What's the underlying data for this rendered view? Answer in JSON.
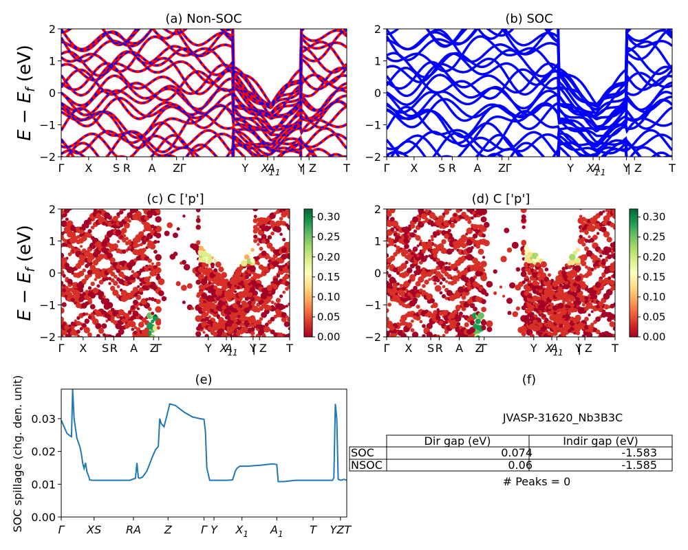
{
  "figure": {
    "id": "JVASP-31620_Nb3B3C"
  },
  "band_ylabel": "E − E",
  "band_ylabel_sub": "f",
  "band_ylabel_unit": " (eV)",
  "kpath": [
    {
      "label": "Γ",
      "x": 0.0
    },
    {
      "label": "X",
      "x": 0.096
    },
    {
      "label": "S",
      "x": 0.193
    },
    {
      "label": "R",
      "x": 0.23
    },
    {
      "label": "A",
      "x": 0.318
    },
    {
      "label": "Z",
      "x": 0.404
    },
    {
      "label": "Γ",
      "x": 0.427
    },
    {
      "label": "Y",
      "x": 0.644
    },
    {
      "label": "X",
      "sub": "1",
      "x": 0.723
    },
    {
      "label": "A",
      "sub": "1",
      "x": 0.745
    },
    {
      "label": "Y",
      "x": 0.84
    },
    {
      "label": "| Z",
      "x": 0.868
    },
    {
      "label": "T",
      "x": 1.0
    }
  ],
  "chart_data": [
    {
      "panel": "a",
      "type": "line",
      "title": "(a) Non-SOC",
      "ylim": [
        -2,
        2
      ],
      "yticks": [
        "−2",
        "−1",
        "0",
        "1",
        "2"
      ],
      "series": [
        {
          "style": "red solid",
          "color": "#ff0000"
        },
        {
          "style": "blue dashed",
          "color": "#0000ff"
        }
      ]
    },
    {
      "panel": "b",
      "type": "line",
      "title": "(b) SOC",
      "ylim": [
        -2,
        2
      ],
      "yticks": [
        "−2",
        "−1",
        "0",
        "1",
        "2"
      ],
      "series": [
        {
          "style": "blue solid",
          "color": "#0000ff"
        }
      ]
    },
    {
      "panel": "c",
      "type": "scatter",
      "title": "(c)  C ['p']",
      "ylim": [
        -2,
        2
      ],
      "yticks": [
        "−2",
        "−1",
        "0",
        "1",
        "2"
      ],
      "colorbar": {
        "min": 0.0,
        "max": 0.32,
        "ticks": [
          "0.00",
          "0.05",
          "0.10",
          "0.15",
          "0.20",
          "0.25",
          "0.30"
        ]
      }
    },
    {
      "panel": "d",
      "type": "scatter",
      "title": "(d) C ['p']",
      "ylim": [
        -2,
        2
      ],
      "yticks": [
        "−2",
        "−1",
        "0",
        "1",
        "2"
      ],
      "colorbar": {
        "min": 0.0,
        "max": 0.32,
        "ticks": [
          "0.00",
          "0.05",
          "0.10",
          "0.15",
          "0.20",
          "0.25",
          "0.30"
        ]
      }
    },
    {
      "panel": "e",
      "type": "line",
      "title": "(e)",
      "ylabel": "SOC spillage (chg. den. unit)",
      "ylim": [
        0,
        0.039
      ],
      "yticks": [
        0.0,
        0.01,
        0.02,
        0.03
      ],
      "ytick_labels": [
        "0.00",
        "0.01",
        "0.02",
        "0.03"
      ],
      "xtick_labels": [
        {
          "label": "Γ",
          "x": 0.0
        },
        {
          "label": "XS",
          "x": 0.115
        },
        {
          "label": "RA",
          "x": 0.253
        },
        {
          "label": "Z",
          "x": 0.374
        },
        {
          "label": "Γ",
          "x": 0.5
        },
        {
          "label": "Y",
          "x": 0.535
        },
        {
          "label": "X",
          "sub": "1",
          "x": 0.633
        },
        {
          "label": "A",
          "sub": "1",
          "x": 0.755
        },
        {
          "label": "T",
          "x": 0.882
        },
        {
          "label": "YZT",
          "x": 0.978
        }
      ],
      "series": [
        {
          "color": "#1f77b4",
          "x": [
            0.0,
            0.01,
            0.02,
            0.03,
            0.036,
            0.04,
            0.045,
            0.055,
            0.065,
            0.07,
            0.075,
            0.08,
            0.085,
            0.09,
            0.095,
            0.1,
            0.11,
            0.13,
            0.16,
            0.2,
            0.24,
            0.26,
            0.265,
            0.27,
            0.275,
            0.285,
            0.3,
            0.32,
            0.33,
            0.34,
            0.345,
            0.35,
            0.36,
            0.37,
            0.38,
            0.4,
            0.43,
            0.46,
            0.485,
            0.5,
            0.505,
            0.51,
            0.52,
            0.55,
            0.58,
            0.6,
            0.61,
            0.615,
            0.625,
            0.65,
            0.7,
            0.74,
            0.755,
            0.76,
            0.78,
            0.82,
            0.86,
            0.9,
            0.93,
            0.95,
            0.955,
            0.96,
            0.965,
            0.97,
            0.98,
            0.99,
            1.0
          ],
          "y": [
            0.0295,
            0.0275,
            0.0255,
            0.0248,
            0.0245,
            0.039,
            0.03,
            0.024,
            0.0215,
            0.0195,
            0.0165,
            0.0148,
            0.0165,
            0.0138,
            0.0127,
            0.0113,
            0.0112,
            0.0112,
            0.0112,
            0.0112,
            0.0112,
            0.0118,
            0.0165,
            0.012,
            0.0118,
            0.0122,
            0.014,
            0.0185,
            0.0205,
            0.0215,
            0.03,
            0.0285,
            0.0275,
            0.031,
            0.0345,
            0.034,
            0.032,
            0.0305,
            0.03,
            0.0298,
            0.026,
            0.015,
            0.0112,
            0.0112,
            0.0112,
            0.0113,
            0.014,
            0.0148,
            0.0155,
            0.0155,
            0.0158,
            0.0162,
            0.016,
            0.0108,
            0.0108,
            0.0112,
            0.0112,
            0.0112,
            0.0112,
            0.0112,
            0.012,
            0.0345,
            0.03,
            0.0115,
            0.0112,
            0.0115,
            0.0112
          ]
        }
      ]
    },
    {
      "panel": "f",
      "type": "table",
      "title": "(f)",
      "caption": "JVASP-31620_Nb3B3C",
      "columns": [
        "Dir gap (eV)",
        "Indir gap (eV)"
      ],
      "rows": [
        {
          "label": "SOC",
          "dir": "0.074",
          "indir": "-1.583"
        },
        {
          "label": "NSOC",
          "dir": "0.06",
          "indir": "-1.585"
        }
      ],
      "note": "# Peaks = 0"
    }
  ]
}
